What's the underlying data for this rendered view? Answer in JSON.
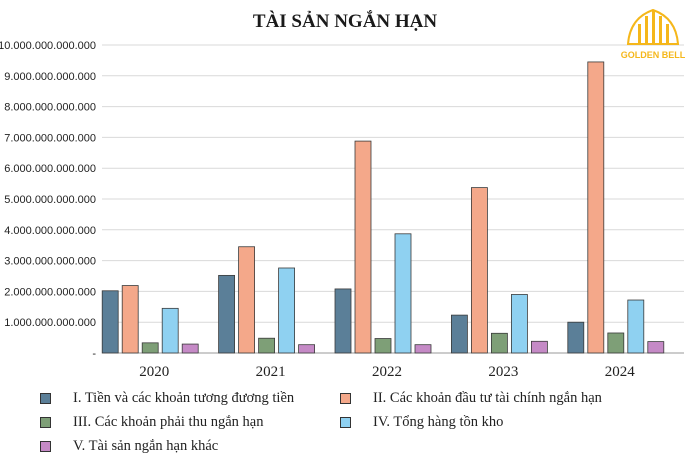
{
  "chart_data": {
    "type": "bar",
    "title": "TÀI SẢN NGẮN HẠN",
    "categories": [
      "2020",
      "2021",
      "2022",
      "2023",
      "2024"
    ],
    "ylim": [
      0,
      10000000000000
    ],
    "yticks": [
      {
        "value": 0,
        "label": "-"
      },
      {
        "value": 1000000000000,
        "label": "1.000.000.000.000"
      },
      {
        "value": 2000000000000,
        "label": "2.000.000.000.000"
      },
      {
        "value": 3000000000000,
        "label": "3.000.000.000.000"
      },
      {
        "value": 4000000000000,
        "label": "4.000.000.000.000"
      },
      {
        "value": 5000000000000,
        "label": "5.000.000.000.000"
      },
      {
        "value": 6000000000000,
        "label": "6.000.000.000.000"
      },
      {
        "value": 7000000000000,
        "label": "7.000.000.000.000"
      },
      {
        "value": 8000000000000,
        "label": "8.000.000.000.000"
      },
      {
        "value": 9000000000000,
        "label": "9.000.000.000.000"
      },
      {
        "value": 10000000000000,
        "label": "10.000.000.000.000"
      }
    ],
    "grid": true,
    "legend_position": "bottom",
    "series": [
      {
        "name": "I. Tiền và các khoản tương đương tiền",
        "color": "#5b7f98",
        "values": [
          2020000000000,
          2520000000000,
          2080000000000,
          1230000000000,
          1000000000000
        ]
      },
      {
        "name": "II. Các khoản đầu tư tài chính ngắn hạn",
        "color": "#f4a88a",
        "values": [
          2190000000000,
          3450000000000,
          6880000000000,
          5370000000000,
          9450000000000
        ]
      },
      {
        "name": "III. Các khoản phải thu ngắn hạn",
        "color": "#7e9f77",
        "values": [
          330000000000,
          480000000000,
          470000000000,
          640000000000,
          650000000000
        ]
      },
      {
        "name": "IV. Tổng hàng tồn kho",
        "color": "#8fd1f1",
        "values": [
          1450000000000,
          2760000000000,
          3870000000000,
          1900000000000,
          1720000000000
        ]
      },
      {
        "name": "V. Tài sản ngắn hạn khác",
        "color": "#c58ac6",
        "values": [
          290000000000,
          270000000000,
          270000000000,
          380000000000,
          370000000000
        ]
      }
    ]
  },
  "logo": {
    "text": "GOLDEN BELL",
    "color": "#f5b71b"
  }
}
